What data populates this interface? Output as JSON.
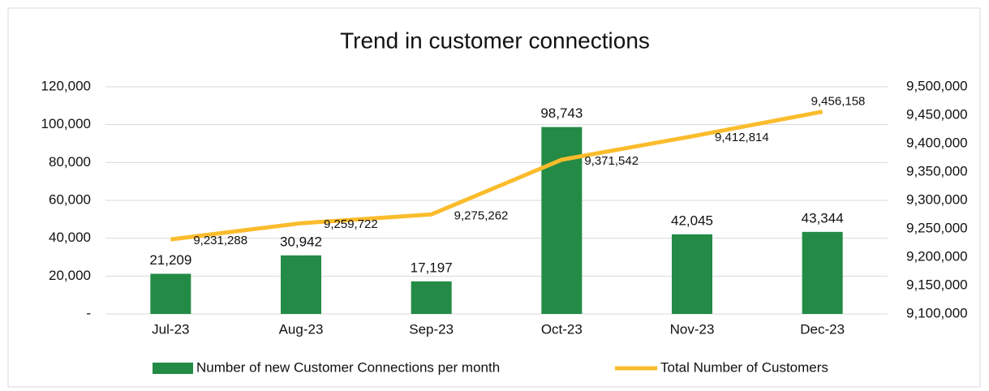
{
  "chart_data": {
    "type": "bar-line",
    "title": "Trend in customer connections",
    "categories": [
      "Jul-23",
      "Aug-23",
      "Sep-23",
      "Oct-23",
      "Nov-23",
      "Dec-23"
    ],
    "series": [
      {
        "name": "Number of new Customer Connections per month",
        "color": "#238b45",
        "type": "bar",
        "values": [
          21209,
          30942,
          17197,
          98743,
          42045,
          43344
        ],
        "value_labels": [
          "21,209",
          "30,942",
          "17,197",
          "98,743",
          "42,045",
          "43,344"
        ]
      },
      {
        "name": "Total Number of Customers",
        "color": "#fbbc2c",
        "type": "line",
        "axis": "y2",
        "values": [
          9231288,
          9259722,
          9275262,
          9371542,
          9412814,
          9456158
        ],
        "value_labels": [
          "9,231,288",
          "9,259,722",
          "9,275,262",
          "9,371,542",
          "9,412,814",
          "9,456,158"
        ]
      }
    ],
    "ylim": [
      0,
      120000
    ],
    "yticks": [
      {
        "value": 0,
        "label": "-"
      },
      {
        "value": 20000,
        "label": "20,000"
      },
      {
        "value": 40000,
        "label": "40,000"
      },
      {
        "value": 60000,
        "label": "60,000"
      },
      {
        "value": 80000,
        "label": "80,000"
      },
      {
        "value": 100000,
        "label": "100,000"
      },
      {
        "value": 120000,
        "label": "120,000"
      }
    ],
    "y2lim": [
      9100000,
      9500000
    ],
    "y2ticks": [
      {
        "value": 9100000,
        "label": "9,100,000"
      },
      {
        "value": 9150000,
        "label": "9,150,000"
      },
      {
        "value": 9200000,
        "label": "9,200,000"
      },
      {
        "value": 9250000,
        "label": "9,250,000"
      },
      {
        "value": 9300000,
        "label": "9,300,000"
      },
      {
        "value": 9350000,
        "label": "9,350,000"
      },
      {
        "value": 9400000,
        "label": "9,400,000"
      },
      {
        "value": 9450000,
        "label": "9,450,000"
      },
      {
        "value": 9500000,
        "label": "9,500,000"
      }
    ],
    "grid": true,
    "legend": "bottom"
  }
}
